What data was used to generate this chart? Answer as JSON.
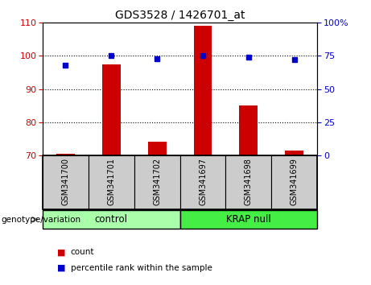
{
  "title": "GDS3528 / 1426701_at",
  "samples": [
    "GSM341700",
    "GSM341701",
    "GSM341702",
    "GSM341697",
    "GSM341698",
    "GSM341699"
  ],
  "counts": [
    70.5,
    97.5,
    74.0,
    109.0,
    85.0,
    71.5
  ],
  "percentile_ranks": [
    68,
    75,
    73,
    75,
    74,
    72
  ],
  "ylim_left": [
    70,
    110
  ],
  "ylim_right": [
    0,
    100
  ],
  "yticks_left": [
    70,
    80,
    90,
    100,
    110
  ],
  "yticks_right": [
    0,
    25,
    50,
    75,
    100
  ],
  "bar_color": "#cc0000",
  "dot_color": "#0000cc",
  "groups": [
    {
      "label": "control",
      "indices": [
        0,
        1,
        2
      ],
      "color": "#aaffaa"
    },
    {
      "label": "KRAP null",
      "indices": [
        3,
        4,
        5
      ],
      "color": "#44ee44"
    }
  ],
  "group_label_prefix": "genotype/variation",
  "legend_count_label": "count",
  "legend_pct_label": "percentile rank within the sample",
  "bg_color": "#ffffff",
  "plot_bg_color": "#ffffff",
  "tick_label_color_left": "#cc0000",
  "tick_label_color_right": "#0000cc",
  "sample_box_color": "#cccccc",
  "grid_lines": [
    80,
    90,
    100
  ],
  "bar_width": 0.4
}
